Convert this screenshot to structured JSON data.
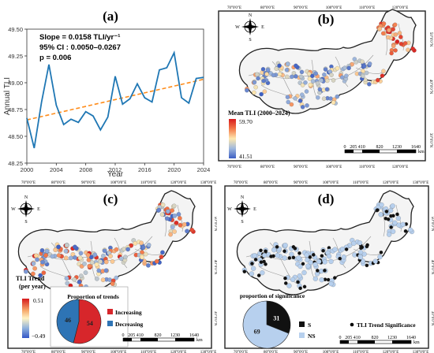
{
  "panel_a": {
    "label": "(a)",
    "stats": [
      "Slope = 0.0158 TLI/yr⁻¹",
      "95% CI : 0.0050–0.0267",
      "p = 0.006"
    ],
    "colors": {
      "series": "#1f77b4",
      "trend": "#ff8c1a"
    },
    "chart_data": {
      "type": "line",
      "title": "",
      "xlabel": "Year",
      "ylabel": "Annual TLI",
      "xlim": [
        2000,
        2024
      ],
      "ylim": [
        48.25,
        49.5
      ],
      "xticks": [
        "2000",
        "2004",
        "2008",
        "2012",
        "2016",
        "2020",
        "2024"
      ],
      "yticks": [
        "48.25",
        "48.50",
        "48.75",
        "49.00",
        "49.25",
        "49.50"
      ],
      "x": [
        2000,
        2001,
        2002,
        2003,
        2004,
        2005,
        2006,
        2007,
        2008,
        2009,
        2010,
        2011,
        2012,
        2013,
        2014,
        2015,
        2016,
        2017,
        2018,
        2019,
        2020,
        2021,
        2022,
        2023,
        2024
      ],
      "values": [
        48.67,
        48.39,
        48.82,
        49.17,
        48.79,
        48.61,
        48.66,
        48.63,
        48.73,
        48.69,
        48.56,
        48.68,
        49.06,
        48.8,
        48.85,
        48.99,
        48.86,
        48.82,
        49.12,
        49.14,
        49.28,
        48.86,
        48.81,
        49.04,
        49.05
      ],
      "trend": [
        48.653,
        49.032
      ],
      "grid": false
    }
  },
  "panel_b": {
    "label": "(b)",
    "legend_title": "Mean TLI (2000–2024)",
    "legend_max": "59.70",
    "legend_min": "41.51",
    "scale_labels": [
      "0",
      "205 410",
      "820",
      "1230",
      "1640"
    ],
    "scale_unit": "km",
    "lon_ticks": [
      "70°0'0\"E",
      "80°0'0\"E",
      "90°0'0\"E",
      "100°0'0\"E",
      "110°0'0\"E",
      "120°0'0\"E"
    ],
    "lat_ticks": [
      "50°0'0\"N",
      "40°0'0\"N",
      "30°0'0\"N"
    ]
  },
  "panel_c": {
    "label": "(c)",
    "legend_title": "TLI Trend",
    "legend_subtitle": "(per year)",
    "legend_max": "0.51",
    "legend_min": "−0.49",
    "pie_title": "Proportion of trends",
    "pie": [
      {
        "label": "Increasing",
        "value": 54,
        "color": "#d7262b"
      },
      {
        "label": "Decreasing",
        "value": 46,
        "color": "#2e74b5"
      }
    ],
    "scale_labels": [
      "0",
      "205 410",
      "820",
      "1230",
      "1640"
    ],
    "scale_unit": "km",
    "lon_ticks": [
      "70°0'0\"E",
      "80°0'0\"E",
      "90°0'0\"E",
      "100°0'0\"E",
      "110°0'0\"E",
      "120°0'0\"E",
      "130°0'0\"E"
    ],
    "lat_ticks": [
      "50°0'0\"N",
      "40°0'0\"N",
      "30°0'0\"N"
    ]
  },
  "panel_d": {
    "label": "(d)",
    "pie_title": "proportion of significance",
    "pie": [
      {
        "label": "S",
        "value": 31,
        "color": "#111111"
      },
      {
        "label": "NS",
        "value": 69,
        "color": "#b7d0ee"
      }
    ],
    "legend_sig": "TLI Trend Significance",
    "scale_labels": [
      "0",
      "205 410",
      "820",
      "1230",
      "1640"
    ],
    "scale_unit": "km",
    "lon_ticks": [
      "70°0'0\"E",
      "80°0'0\"E",
      "90°0'0\"E",
      "100°0'0\"E",
      "110°0'0\"E",
      "120°0'0\"E",
      "130°0'0\"E"
    ],
    "lat_ticks": [
      "50°0'0\"N",
      "40°0'0\"N",
      "30°0'0\"N"
    ]
  },
  "compass": {
    "n": "N",
    "s": "S",
    "e": "E",
    "w": "W"
  }
}
